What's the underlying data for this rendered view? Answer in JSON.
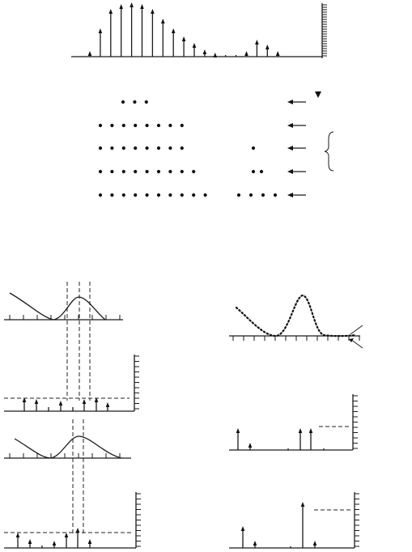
{
  "top_stick_spectrum": {
    "heights": [
      6,
      34,
      58,
      64,
      66,
      64,
      58,
      46,
      34,
      24,
      16,
      8,
      4,
      2,
      2,
      6,
      20,
      14,
      6
    ]
  },
  "dot_rows": {
    "left_counts": [
      3,
      8,
      8,
      9,
      10
    ],
    "right_counts": [
      0,
      0,
      1,
      2,
      4
    ]
  },
  "left_panels": {
    "first_stick_heights": [
      16,
      14,
      5,
      12,
      5,
      14,
      16,
      10
    ],
    "second_stick_heights": [
      18,
      10,
      3,
      8,
      18,
      24,
      10
    ]
  },
  "right_panels": {
    "first_stick_heights": [
      26,
      8,
      2,
      26,
      26,
      2
    ],
    "second_stick_heights": [
      26,
      8,
      2,
      56,
      8
    ]
  }
}
